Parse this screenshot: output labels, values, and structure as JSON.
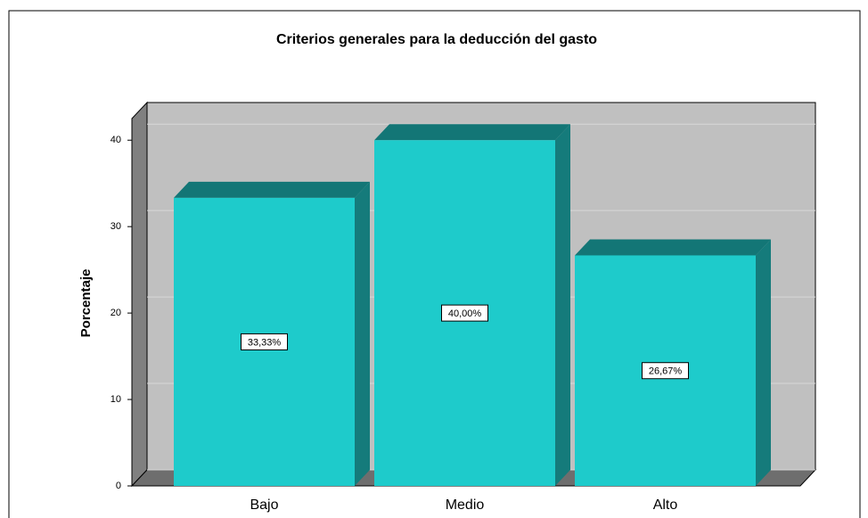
{
  "chart_data": {
    "type": "bar3d",
    "title": "Criterios generales para la deducción del gasto",
    "y_label": "Porcentaje",
    "categories": [
      "Bajo",
      "Medio",
      "Alto"
    ],
    "values": [
      33.33,
      40.0,
      26.67
    ],
    "value_labels": [
      "33,33%",
      "40,00%",
      "26,67%"
    ],
    "color": "#1ecbcb",
    "ylim": [
      0,
      42.5
    ],
    "yticks": [
      0,
      10,
      20,
      30,
      40
    ],
    "grid": true
  }
}
